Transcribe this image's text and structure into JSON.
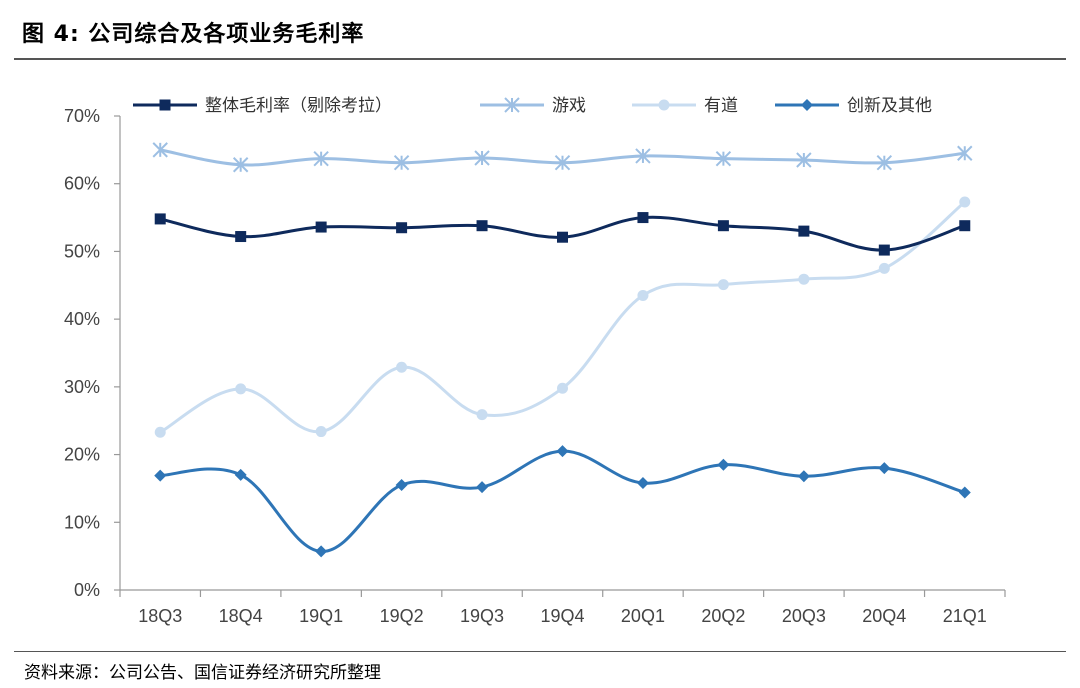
{
  "header": {
    "title": "图 4:  公司综合及各项业务毛利率"
  },
  "footer": {
    "source": "资料来源：公司公告、国信证券经济研究所整理"
  },
  "chart_data": {
    "type": "line",
    "categories": [
      "18Q3",
      "18Q4",
      "19Q1",
      "19Q2",
      "19Q3",
      "19Q4",
      "20Q1",
      "20Q2",
      "20Q3",
      "20Q4",
      "21Q1"
    ],
    "y_tick_labels": [
      "0%",
      "10%",
      "20%",
      "30%",
      "40%",
      "50%",
      "60%",
      "70%"
    ],
    "ylim": [
      0,
      70
    ],
    "xlabel": "",
    "ylabel": "",
    "grid": false,
    "legend_position": "top",
    "series": [
      {
        "name": "整体毛利率（剔除考拉）",
        "color": "#0e2a5c",
        "marker": "square",
        "values": [
          54.8,
          52.2,
          53.6,
          53.5,
          53.8,
          52.1,
          55.0,
          53.8,
          53.0,
          50.2,
          53.8
        ]
      },
      {
        "name": "游戏",
        "color": "#9dbfe3",
        "marker": "asterisk",
        "values": [
          65.0,
          62.8,
          63.7,
          63.1,
          63.8,
          63.1,
          64.1,
          63.7,
          63.5,
          63.1,
          64.5
        ]
      },
      {
        "name": "有道",
        "color": "#c8dcf0",
        "marker": "circle",
        "values": [
          23.3,
          29.7,
          23.4,
          32.9,
          25.9,
          29.8,
          43.5,
          45.1,
          45.9,
          47.5,
          57.3
        ]
      },
      {
        "name": "创新及其他",
        "color": "#2e75b6",
        "marker": "diamond",
        "values": [
          16.9,
          17.0,
          5.7,
          15.5,
          15.2,
          20.5,
          15.8,
          18.5,
          16.8,
          18.0,
          14.4
        ]
      }
    ]
  }
}
